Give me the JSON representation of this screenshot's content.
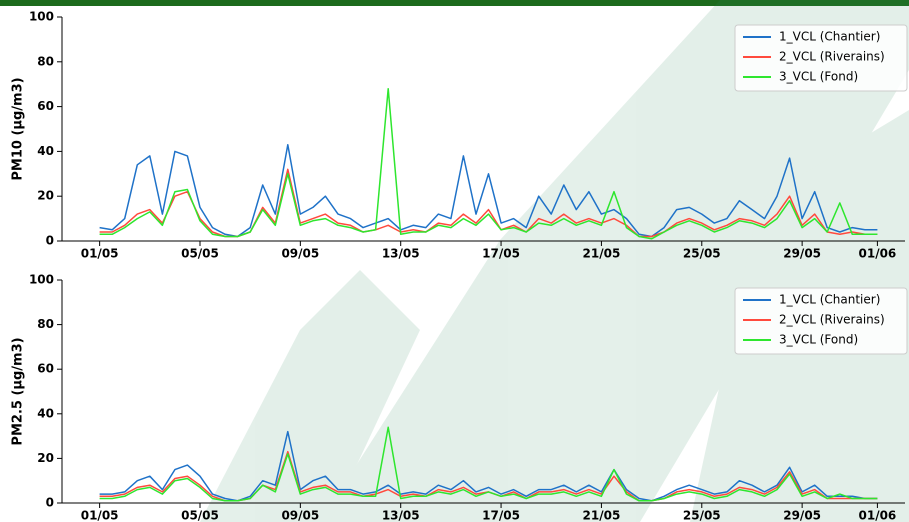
{
  "chart_data": [
    {
      "type": "line",
      "ylabel": "PM10 (µg/m3)",
      "legend": "upper right",
      "x": [
        0,
        0.5,
        1,
        1.5,
        2,
        2.5,
        3,
        3.5,
        4,
        4.5,
        5,
        5.5,
        6,
        6.5,
        7,
        7.5,
        8,
        8.5,
        9,
        9.5,
        10,
        10.5,
        11,
        11.5,
        12,
        12.5,
        13,
        13.5,
        14,
        14.5,
        15,
        15.5,
        16,
        16.5,
        17,
        17.5,
        18,
        18.5,
        19,
        19.5,
        20,
        20.5,
        21,
        21.5,
        22,
        22.5,
        23,
        23.5,
        24,
        24.5,
        25,
        25.5,
        26,
        26.5,
        27,
        27.5,
        28,
        28.5,
        29,
        29.5,
        30,
        30.5,
        31
      ],
      "xlim": [
        -1.5,
        32.1
      ],
      "ylim": [
        0,
        100
      ],
      "yticks": [
        0,
        20,
        40,
        60,
        80,
        100
      ],
      "xticks": [
        {
          "value": 0,
          "label": "01/05"
        },
        {
          "value": 4,
          "label": "05/05"
        },
        {
          "value": 8,
          "label": "09/05"
        },
        {
          "value": 12,
          "label": "13/05"
        },
        {
          "value": 16,
          "label": "17/05"
        },
        {
          "value": 20,
          "label": "21/05"
        },
        {
          "value": 24,
          "label": "25/05"
        },
        {
          "value": 28,
          "label": "29/05"
        },
        {
          "value": 31,
          "label": "01/06"
        }
      ],
      "series": [
        {
          "name": "1_VCL (Chantier)",
          "color": "#1f72c8",
          "values": [
            6,
            5,
            10,
            34,
            38,
            12,
            40,
            38,
            15,
            6,
            3,
            2,
            6,
            25,
            12,
            43,
            12,
            15,
            20,
            12,
            10,
            6,
            8,
            10,
            5,
            7,
            6,
            12,
            10,
            38,
            12,
            30,
            8,
            10,
            6,
            20,
            12,
            25,
            14,
            22,
            12,
            14,
            10,
            3,
            2,
            6,
            14,
            15,
            12,
            8,
            10,
            18,
            14,
            10,
            20,
            37,
            10,
            22,
            6,
            4,
            6,
            5,
            5
          ]
        },
        {
          "name": "2_VCL (Riverains)",
          "color": "#ff4a3d",
          "values": [
            4,
            4,
            7,
            12,
            14,
            8,
            20,
            22,
            10,
            4,
            2,
            2,
            4,
            15,
            8,
            32,
            8,
            10,
            12,
            8,
            7,
            4,
            5,
            7,
            4,
            5,
            4,
            8,
            7,
            12,
            8,
            14,
            5,
            7,
            4,
            10,
            8,
            12,
            8,
            10,
            8,
            10,
            7,
            2,
            2,
            4,
            8,
            10,
            8,
            5,
            7,
            10,
            9,
            7,
            12,
            20,
            7,
            12,
            4,
            3,
            4,
            3,
            3
          ]
        },
        {
          "name": "3_VCL (Fond)",
          "color": "#2ee62e",
          "values": [
            3,
            3,
            6,
            10,
            13,
            7,
            22,
            23,
            9,
            3,
            2,
            2,
            4,
            14,
            7,
            30,
            7,
            9,
            10,
            7,
            6,
            4,
            5,
            68,
            3,
            4,
            4,
            7,
            6,
            10,
            7,
            12,
            5,
            6,
            4,
            8,
            7,
            10,
            7,
            9,
            7,
            22,
            6,
            2,
            1,
            4,
            7,
            9,
            7,
            4,
            6,
            9,
            8,
            6,
            10,
            18,
            6,
            10,
            4,
            17,
            3,
            3,
            3
          ]
        }
      ]
    },
    {
      "type": "line",
      "ylabel": "PM2.5 (µg/m3)",
      "legend": "upper right",
      "x": [
        0,
        0.5,
        1,
        1.5,
        2,
        2.5,
        3,
        3.5,
        4,
        4.5,
        5,
        5.5,
        6,
        6.5,
        7,
        7.5,
        8,
        8.5,
        9,
        9.5,
        10,
        10.5,
        11,
        11.5,
        12,
        12.5,
        13,
        13.5,
        14,
        14.5,
        15,
        15.5,
        16,
        16.5,
        17,
        17.5,
        18,
        18.5,
        19,
        19.5,
        20,
        20.5,
        21,
        21.5,
        22,
        22.5,
        23,
        23.5,
        24,
        24.5,
        25,
        25.5,
        26,
        26.5,
        27,
        27.5,
        28,
        28.5,
        29,
        29.5,
        30,
        30.5,
        31
      ],
      "xlim": [
        -1.5,
        32.1
      ],
      "ylim": [
        0,
        100
      ],
      "yticks": [
        0,
        20,
        40,
        60,
        80,
        100
      ],
      "xticks": [
        {
          "value": 0,
          "label": "01/05"
        },
        {
          "value": 4,
          "label": "05/05"
        },
        {
          "value": 8,
          "label": "09/05"
        },
        {
          "value": 12,
          "label": "13/05"
        },
        {
          "value": 16,
          "label": "17/05"
        },
        {
          "value": 20,
          "label": "21/05"
        },
        {
          "value": 24,
          "label": "25/05"
        },
        {
          "value": 28,
          "label": "29/05"
        },
        {
          "value": 31,
          "label": "01/06"
        }
      ],
      "series": [
        {
          "name": "1_VCL (Chantier)",
          "color": "#1f72c8",
          "values": [
            4,
            4,
            5,
            10,
            12,
            6,
            15,
            17,
            12,
            4,
            2,
            1,
            3,
            10,
            8,
            32,
            6,
            10,
            12,
            6,
            6,
            4,
            5,
            8,
            4,
            5,
            4,
            8,
            6,
            10,
            5,
            7,
            4,
            6,
            3,
            6,
            6,
            8,
            5,
            8,
            5,
            15,
            6,
            2,
            1,
            3,
            6,
            8,
            6,
            4,
            5,
            10,
            8,
            5,
            8,
            16,
            5,
            8,
            3,
            3,
            3,
            2,
            2
          ]
        },
        {
          "name": "2_VCL (Riverains)",
          "color": "#ff4a3d",
          "values": [
            3,
            3,
            4,
            7,
            8,
            5,
            11,
            12,
            8,
            3,
            1,
            1,
            2,
            8,
            6,
            23,
            5,
            7,
            8,
            5,
            5,
            3,
            4,
            6,
            3,
            4,
            3,
            6,
            5,
            7,
            4,
            5,
            3,
            5,
            2,
            5,
            5,
            6,
            4,
            6,
            4,
            12,
            5,
            1,
            1,
            2,
            5,
            6,
            5,
            3,
            4,
            7,
            6,
            4,
            7,
            14,
            4,
            6,
            2,
            2,
            2,
            2,
            2
          ]
        },
        {
          "name": "3_VCL (Fond)",
          "color": "#2ee62e",
          "values": [
            2,
            2,
            3,
            6,
            7,
            4,
            10,
            11,
            7,
            2,
            1,
            1,
            2,
            8,
            5,
            22,
            4,
            6,
            7,
            4,
            4,
            3,
            3,
            34,
            2,
            3,
            3,
            5,
            4,
            6,
            3,
            5,
            3,
            4,
            2,
            4,
            4,
            5,
            3,
            5,
            3,
            15,
            4,
            1,
            1,
            2,
            4,
            5,
            4,
            2,
            3,
            6,
            5,
            3,
            6,
            13,
            3,
            5,
            2,
            4,
            2,
            2,
            2
          ]
        }
      ]
    }
  ]
}
